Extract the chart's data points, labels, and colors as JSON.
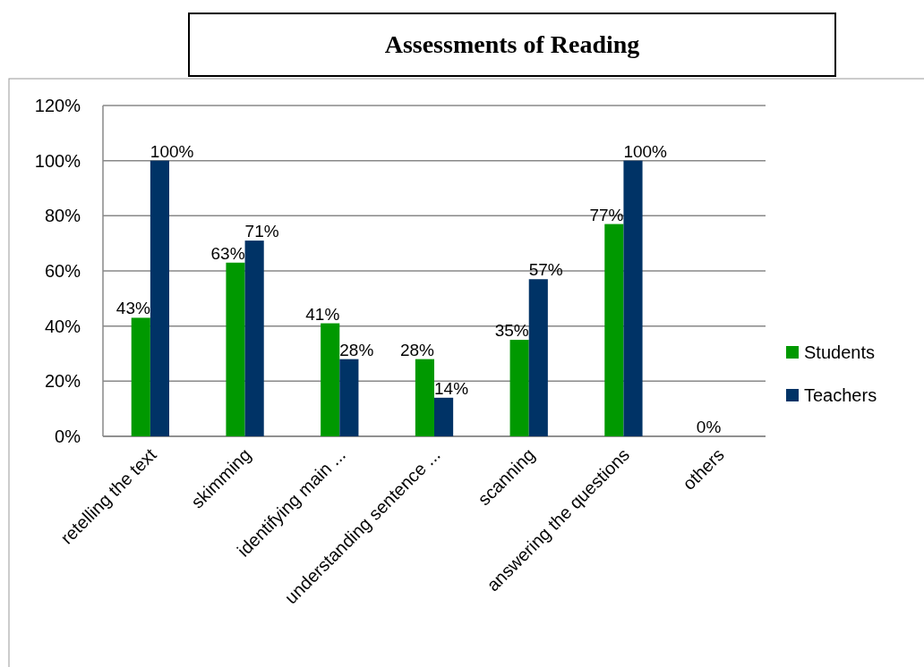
{
  "chart_data": {
    "type": "bar",
    "title": "Assessments of Reading",
    "categories": [
      "retelling the text",
      "skimming",
      "identifying main ...",
      "understanding sentence  ...",
      "scanning",
      "answering the questions",
      "others"
    ],
    "series": [
      {
        "name": "Students",
        "color": "#009900",
        "values": [
          43,
          63,
          41,
          28,
          35,
          77,
          0
        ],
        "value_labels": [
          "43%",
          "63%",
          "41%",
          "28%",
          "35%",
          "77%",
          "0%"
        ]
      },
      {
        "name": "Teachers",
        "color": "#003366",
        "values": [
          100,
          71,
          28,
          14,
          57,
          100,
          0
        ],
        "value_labels": [
          "100%",
          "71%",
          "28%",
          "14%",
          "57%",
          "100%",
          null
        ]
      }
    ],
    "ylim": [
      0,
      120
    ],
    "yticks": [
      {
        "value": 0,
        "label": "0%"
      },
      {
        "value": 20,
        "label": "20%"
      },
      {
        "value": 40,
        "label": "40%"
      },
      {
        "value": 60,
        "label": "60%"
      },
      {
        "value": 80,
        "label": "80%"
      },
      {
        "value": 100,
        "label": "100%"
      },
      {
        "value": 120,
        "label": "120%"
      }
    ],
    "grid": "y",
    "legend": "right"
  }
}
